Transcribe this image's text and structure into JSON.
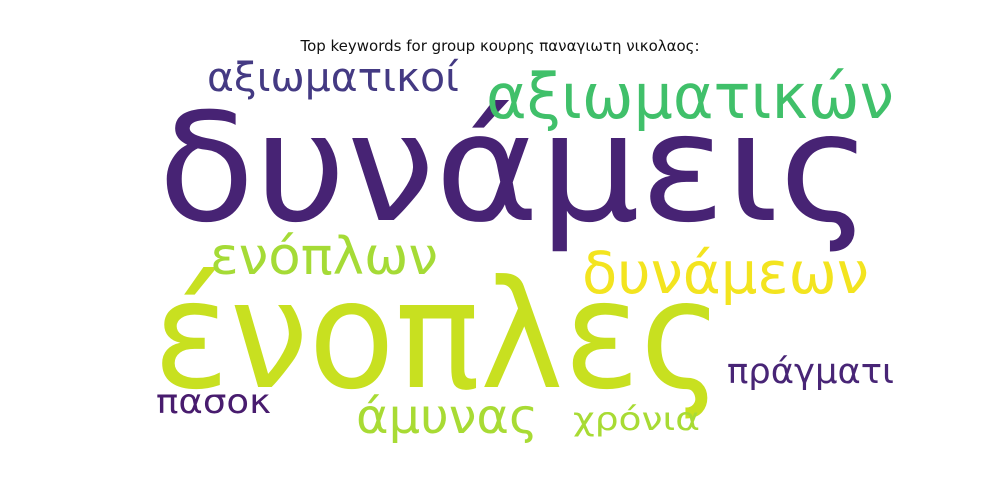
{
  "chart_data": {
    "type": "wordcloud",
    "title": "Top keywords for group κουρης παναγιωτη νικολαος:",
    "words": [
      {
        "text": "δυνάμεις",
        "weight": 1.0,
        "color": "#472374"
      },
      {
        "text": "ένοπλες",
        "weight": 0.95,
        "color": "#c8e020"
      },
      {
        "text": "αξιωματικών",
        "weight": 0.5,
        "color": "#40c06a"
      },
      {
        "text": "αξιωματικοί",
        "weight": 0.36,
        "color": "#443a83"
      },
      {
        "text": "ενόπλων",
        "weight": 0.42,
        "color": "#a5db36"
      },
      {
        "text": "δυνάμεων",
        "weight": 0.45,
        "color": "#f3e41f"
      },
      {
        "text": "πράγματι",
        "weight": 0.3,
        "color": "#482576"
      },
      {
        "text": "πασοκ",
        "weight": 0.28,
        "color": "#481c6e"
      },
      {
        "text": "άμυνας",
        "weight": 0.38,
        "color": "#a8db34"
      },
      {
        "text": "χρόνια",
        "weight": 0.3,
        "color": "#a8db34"
      }
    ]
  }
}
